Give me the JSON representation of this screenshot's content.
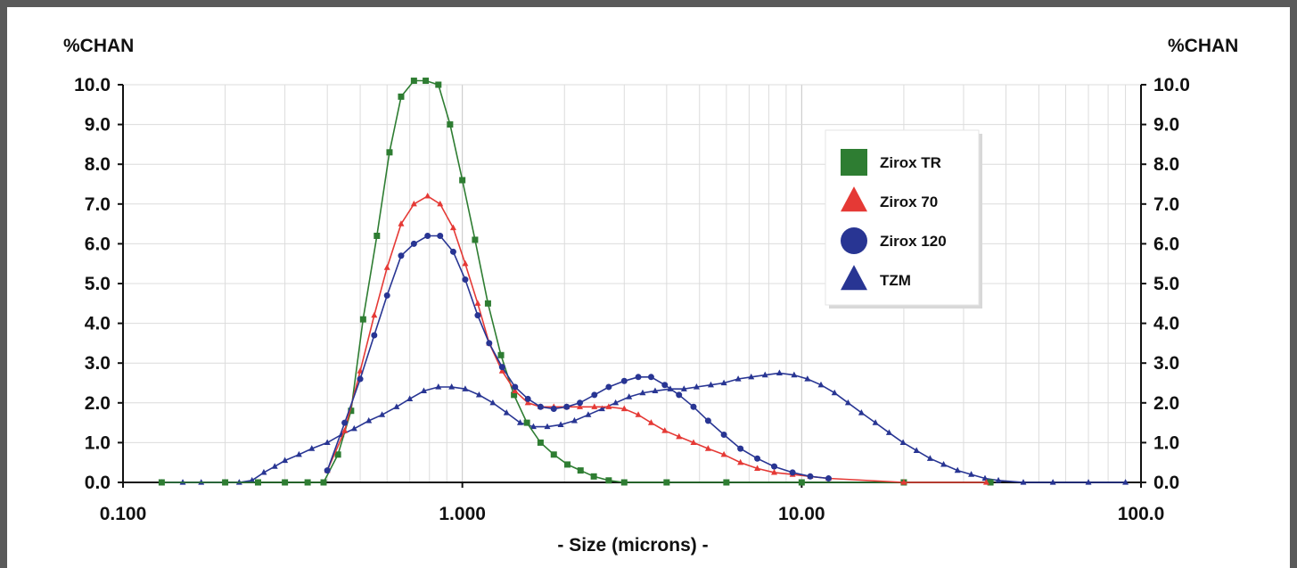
{
  "chart_data": {
    "type": "line",
    "x_scale": "log",
    "xlim": [
      0.1,
      100.0
    ],
    "ylim": [
      0,
      10
    ],
    "grid": true,
    "legend_position": "top-right",
    "xlabel": "- Size (microns) -",
    "ylabel_left": "%CHAN",
    "ylabel_right": "%CHAN",
    "x_ticks": [
      "0.100",
      "1.000",
      "10.00",
      "100.0"
    ],
    "y_ticks": [
      "0.0",
      "1.0",
      "2.0",
      "3.0",
      "4.0",
      "5.0",
      "6.0",
      "7.0",
      "8.0",
      "9.0",
      "10.0"
    ],
    "series": [
      {
        "name": "Zirox TR",
        "color": "#2e7d32",
        "marker": "square",
        "x": [
          0.13,
          0.2,
          0.25,
          0.3,
          0.35,
          0.39,
          0.43,
          0.47,
          0.51,
          0.56,
          0.61,
          0.66,
          0.72,
          0.78,
          0.85,
          0.92,
          1.0,
          1.09,
          1.19,
          1.3,
          1.42,
          1.55,
          1.7,
          1.86,
          2.04,
          2.23,
          2.44,
          2.7,
          3.0,
          4.0,
          6.0,
          10.0,
          20.0,
          36.0
        ],
        "y": [
          0,
          0,
          0,
          0,
          0,
          0,
          0.7,
          1.8,
          4.1,
          6.2,
          8.3,
          9.7,
          10.1,
          10.1,
          10.0,
          9.0,
          7.6,
          6.1,
          4.5,
          3.2,
          2.2,
          1.5,
          1.0,
          0.7,
          0.45,
          0.3,
          0.15,
          0.05,
          0,
          0,
          0,
          0,
          0,
          0
        ]
      },
      {
        "name": "Zirox 70",
        "color": "#e53935",
        "marker": "triangle",
        "x": [
          0.4,
          0.45,
          0.5,
          0.55,
          0.6,
          0.66,
          0.72,
          0.79,
          0.86,
          0.94,
          1.02,
          1.11,
          1.2,
          1.31,
          1.43,
          1.56,
          1.7,
          1.86,
          2.03,
          2.22,
          2.45,
          2.7,
          3.0,
          3.3,
          3.6,
          3.95,
          4.35,
          4.8,
          5.3,
          5.9,
          6.6,
          7.4,
          8.3,
          9.4,
          10.6,
          12.0,
          20.0,
          35.0
        ],
        "y": [
          0.3,
          1.3,
          2.8,
          4.2,
          5.4,
          6.5,
          7.0,
          7.2,
          7.0,
          6.4,
          5.5,
          4.5,
          3.5,
          2.8,
          2.3,
          2.0,
          1.9,
          1.9,
          1.9,
          1.9,
          1.9,
          1.9,
          1.85,
          1.7,
          1.5,
          1.3,
          1.15,
          1.0,
          0.85,
          0.7,
          0.5,
          0.35,
          0.25,
          0.2,
          0.15,
          0.1,
          0,
          0
        ]
      },
      {
        "name": "Zirox 120",
        "color": "#283593",
        "marker": "circle",
        "x": [
          0.4,
          0.45,
          0.5,
          0.55,
          0.6,
          0.66,
          0.72,
          0.79,
          0.86,
          0.94,
          1.02,
          1.11,
          1.2,
          1.31,
          1.43,
          1.56,
          1.7,
          1.86,
          2.03,
          2.22,
          2.45,
          2.7,
          3.0,
          3.3,
          3.6,
          3.95,
          4.35,
          4.8,
          5.3,
          5.9,
          6.6,
          7.4,
          8.3,
          9.4,
          10.6,
          12.0
        ],
        "y": [
          0.3,
          1.5,
          2.6,
          3.7,
          4.7,
          5.7,
          6.0,
          6.2,
          6.2,
          5.8,
          5.1,
          4.2,
          3.5,
          2.9,
          2.4,
          2.1,
          1.9,
          1.85,
          1.9,
          2.0,
          2.2,
          2.4,
          2.55,
          2.65,
          2.65,
          2.45,
          2.2,
          1.9,
          1.55,
          1.2,
          0.85,
          0.6,
          0.4,
          0.25,
          0.15,
          0.1
        ]
      },
      {
        "name": "TZM",
        "color": "#283593",
        "marker": "triangle",
        "x": [
          0.13,
          0.15,
          0.17,
          0.2,
          0.22,
          0.24,
          0.26,
          0.28,
          0.3,
          0.33,
          0.36,
          0.4,
          0.44,
          0.48,
          0.53,
          0.58,
          0.64,
          0.7,
          0.77,
          0.85,
          0.93,
          1.02,
          1.12,
          1.23,
          1.35,
          1.48,
          1.62,
          1.78,
          1.95,
          2.14,
          2.35,
          2.58,
          2.83,
          3.1,
          3.4,
          3.7,
          4.1,
          4.5,
          4.9,
          5.4,
          5.9,
          6.5,
          7.1,
          7.8,
          8.6,
          9.5,
          10.4,
          11.4,
          12.5,
          13.7,
          15.0,
          16.5,
          18.1,
          19.9,
          21.8,
          23.9,
          26.2,
          28.8,
          31.6,
          34.7,
          38.0,
          45.0,
          55.0,
          70.0,
          90.0
        ],
        "y": [
          0,
          0,
          0,
          0,
          0,
          0.05,
          0.25,
          0.4,
          0.55,
          0.7,
          0.85,
          1.0,
          1.2,
          1.35,
          1.55,
          1.7,
          1.9,
          2.1,
          2.3,
          2.4,
          2.4,
          2.35,
          2.2,
          2.0,
          1.75,
          1.5,
          1.4,
          1.4,
          1.45,
          1.55,
          1.7,
          1.85,
          2.0,
          2.15,
          2.25,
          2.3,
          2.35,
          2.35,
          2.4,
          2.45,
          2.5,
          2.6,
          2.65,
          2.7,
          2.75,
          2.7,
          2.6,
          2.45,
          2.25,
          2.0,
          1.75,
          1.5,
          1.25,
          1.0,
          0.8,
          0.6,
          0.45,
          0.3,
          0.2,
          0.1,
          0.05,
          0,
          0,
          0,
          0
        ]
      }
    ]
  }
}
